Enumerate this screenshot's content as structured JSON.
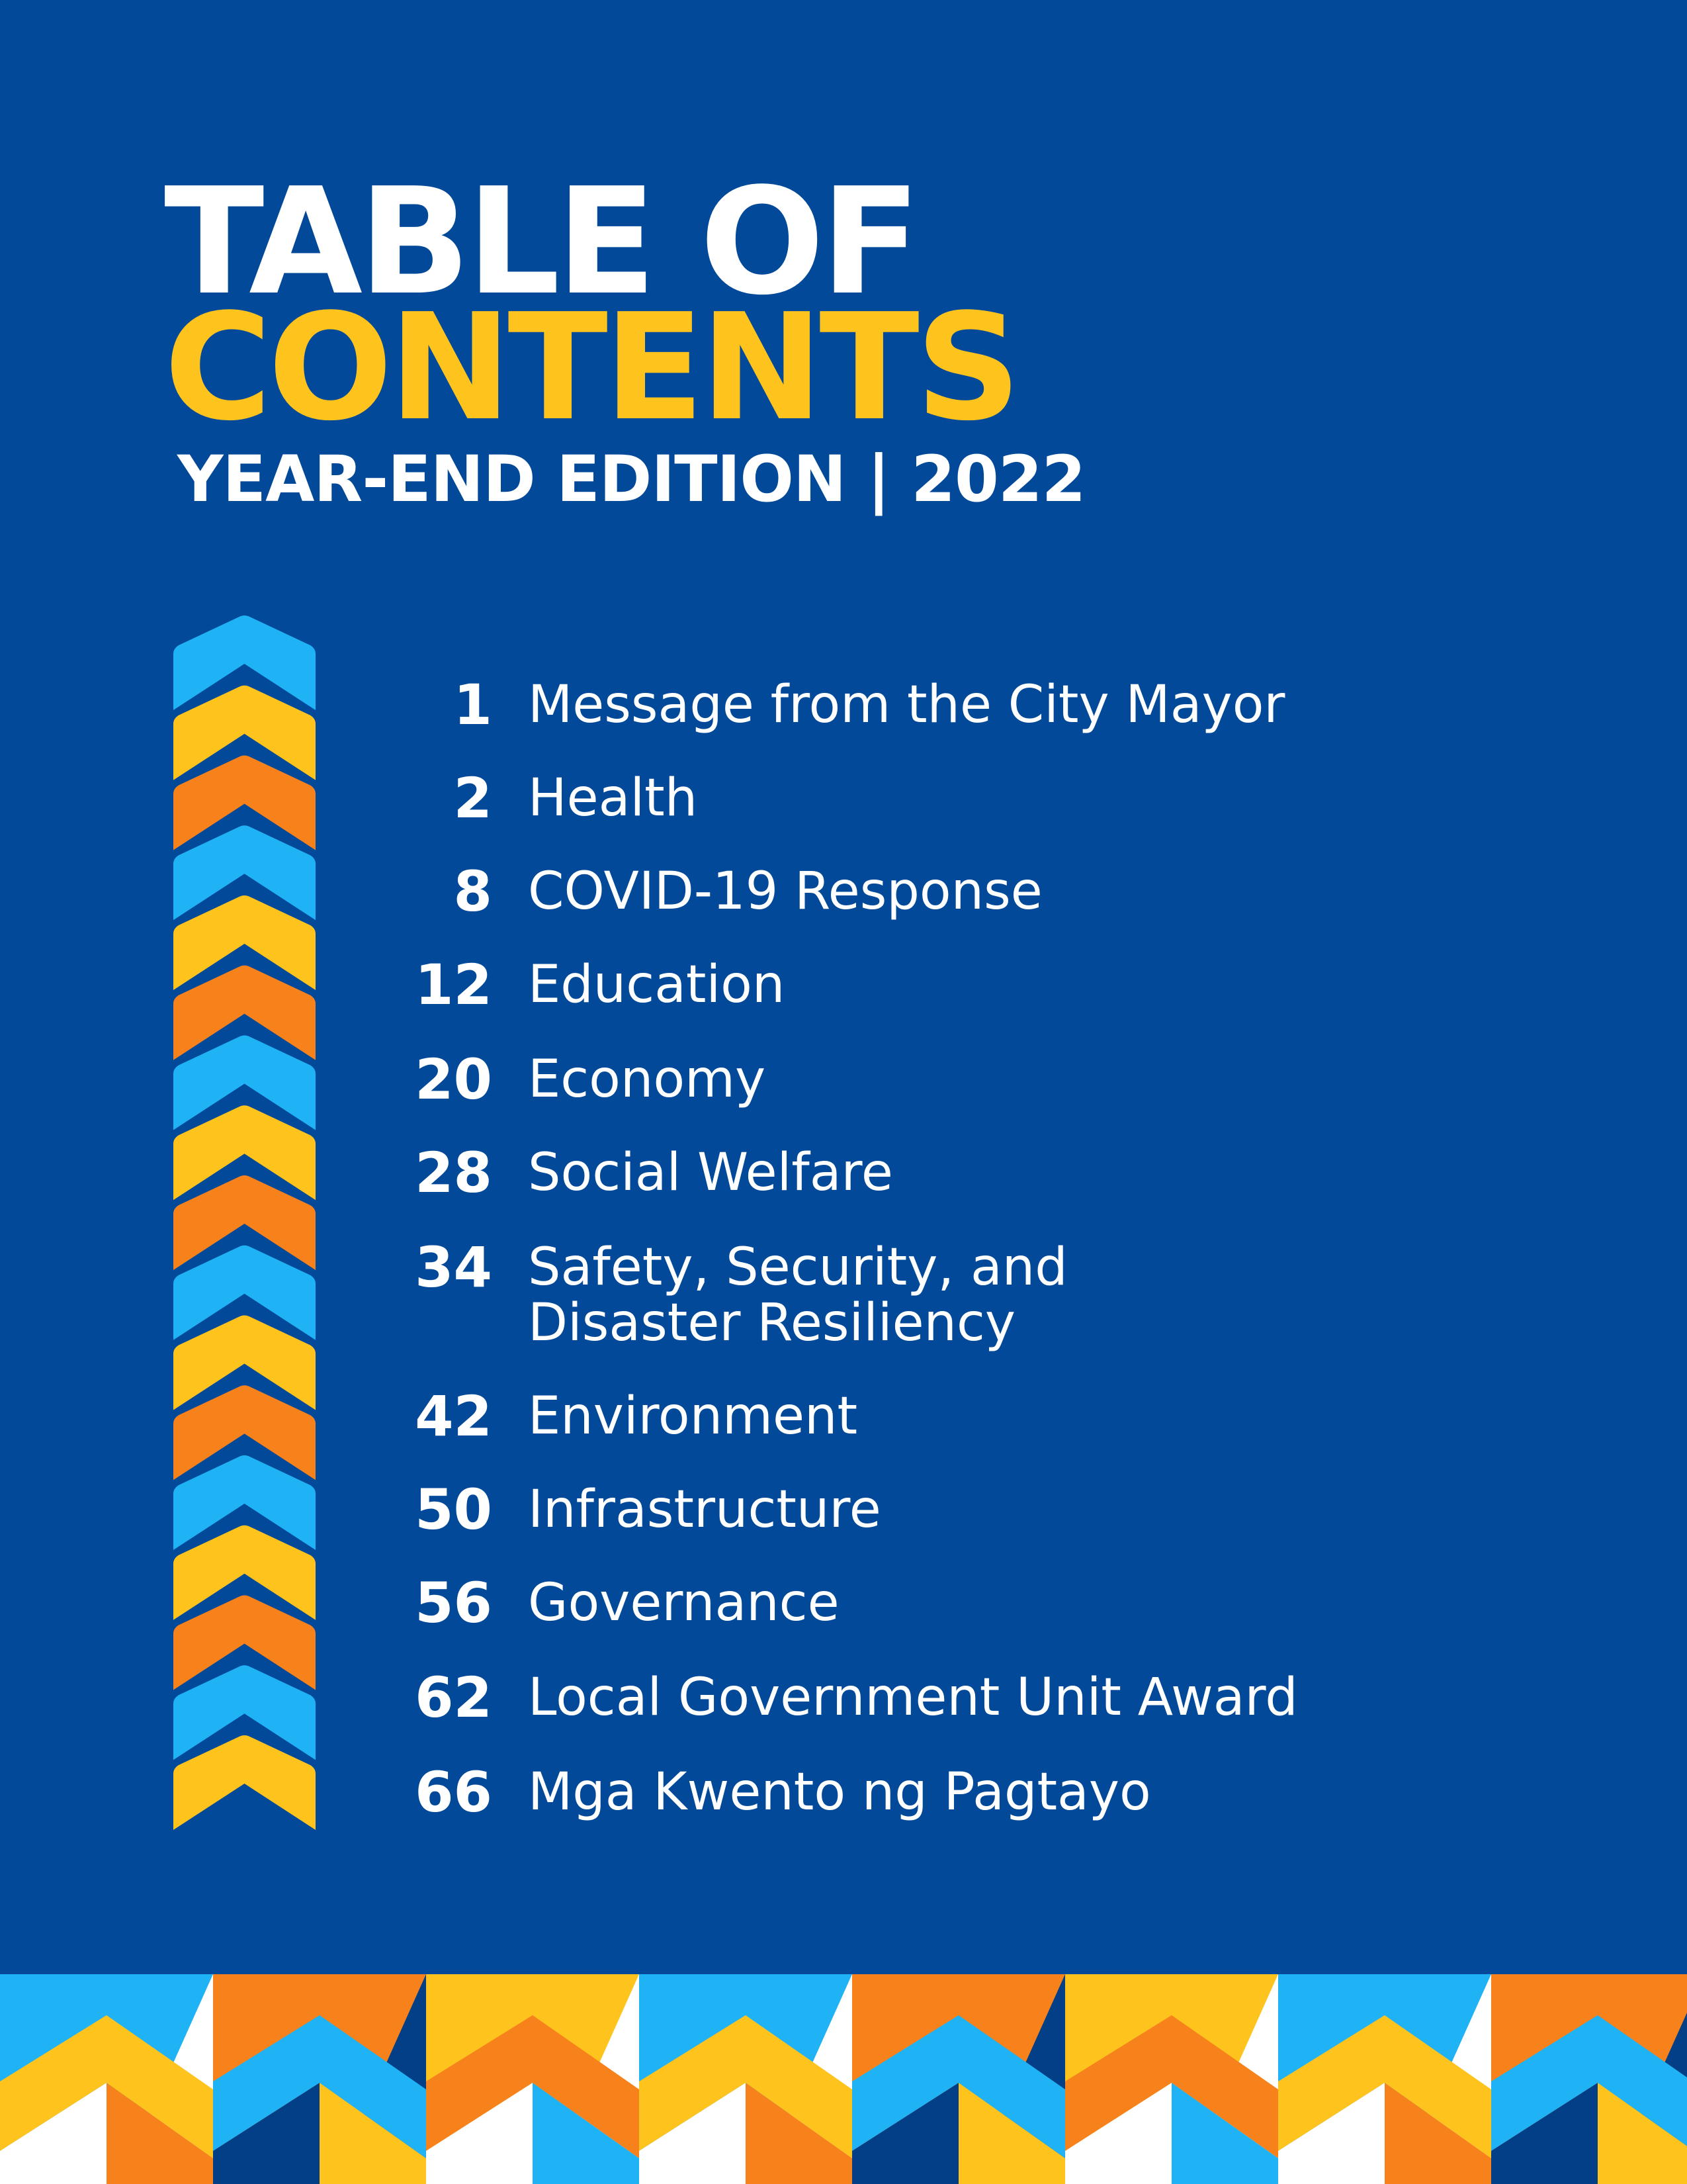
{
  "header": {
    "title_line1": "TABLE OF",
    "title_line2": "CONTENTS",
    "subtitle": "YEAR-END EDITION | 2022"
  },
  "toc": [
    {
      "page": "1",
      "title": "Message from the City Mayor"
    },
    {
      "page": "2",
      "title": "Health"
    },
    {
      "page": "8",
      "title": "COVID-19 Response"
    },
    {
      "page": "12",
      "title": "Education"
    },
    {
      "page": "20",
      "title": "Economy"
    },
    {
      "page": "28",
      "title": "Social Welfare"
    },
    {
      "page": "34",
      "title": "Safety, Security, and",
      "title_line2": "Disaster Resiliency"
    },
    {
      "page": "42",
      "title": "Environment"
    },
    {
      "page": "50",
      "title": "Infrastructure"
    },
    {
      "page": "56",
      "title": "Governance"
    },
    {
      "page": "62",
      "title": "Local Government Unit Award"
    },
    {
      "page": "66",
      "title": "Mga Kwento ng Pagtayo"
    }
  ],
  "colors": {
    "background": "#03499a",
    "accent_yellow": "#fec31d",
    "accent_orange": "#f7821b",
    "accent_blue": "#1fb2f5",
    "navy": "#033f86",
    "white": "#ffffff"
  }
}
